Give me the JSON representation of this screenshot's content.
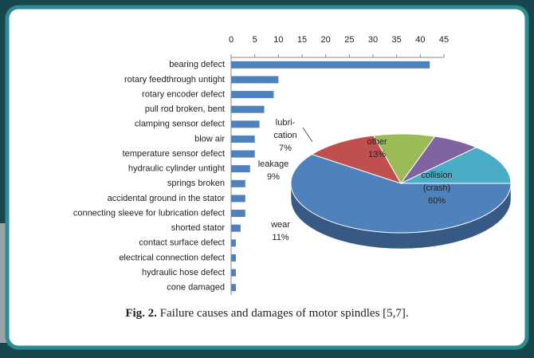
{
  "chart_data": [
    {
      "type": "barh",
      "categories": [
        "bearing defect",
        "rotary feedthrough untight",
        "rotary encoder defect",
        "pull rod broken, bent",
        "clamping sensor defect",
        "blow air",
        "temperature sensor defect",
        "hydraulic cylinder untight",
        "springs broken",
        "accidental ground in the stator",
        "connecting sleeve for lubrication defect",
        "shorted stator",
        "contact surface defect",
        "electrical connection defect",
        "hydraulic hose defect",
        "cone damaged"
      ],
      "values": [
        42,
        10,
        9,
        7,
        6,
        5,
        5,
        4,
        3,
        3,
        3,
        2,
        1,
        1,
        1,
        1
      ],
      "color": "#4f81bd",
      "xlim": [
        0,
        45
      ],
      "xticks": [
        0,
        5,
        10,
        15,
        20,
        25,
        30,
        35,
        40,
        45
      ]
    },
    {
      "type": "pie",
      "categories": [
        "other",
        "collision\n(crash)",
        "wear",
        "leakage",
        "lubri-\ncation"
      ],
      "values": [
        13,
        60,
        11,
        9,
        7
      ],
      "value_labels": [
        "13%",
        "60%",
        "11%",
        "9%",
        "7%"
      ],
      "colors": [
        "#4bacc6",
        "#4f81bd",
        "#c0504d",
        "#9bbb59",
        "#8064a2"
      ]
    }
  ],
  "caption_label": "Fig. 2.",
  "caption": "Failure causes and damages of motor spindles [5,7]."
}
